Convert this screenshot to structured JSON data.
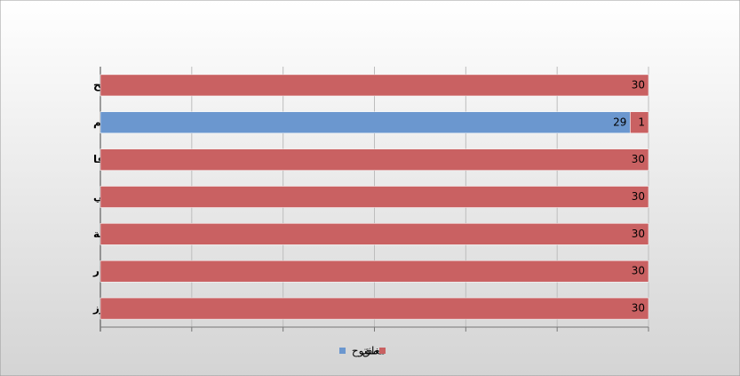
{
  "chart_data": {
    "type": "stacked-barh",
    "categories": [
      "رفح",
      "كرم ابو سالم",
      "صوفا",
      "مطار ياسر عرفات الدولي",
      "الشجاعية",
      "المنطار",
      "بيت حانون آيرز"
    ],
    "series": [
      {
        "name": "مفتوح",
        "color": "#6b97cf",
        "values": [
          0,
          29,
          0,
          0,
          0,
          0,
          0
        ]
      },
      {
        "name": "مغلق",
        "color": "#c96162",
        "values": [
          30,
          1,
          30,
          30,
          30,
          30,
          30
        ]
      }
    ],
    "xlim": [
      0,
      30
    ],
    "xticks": [
      0,
      5,
      10,
      15,
      20,
      25,
      30
    ],
    "grid": true
  }
}
